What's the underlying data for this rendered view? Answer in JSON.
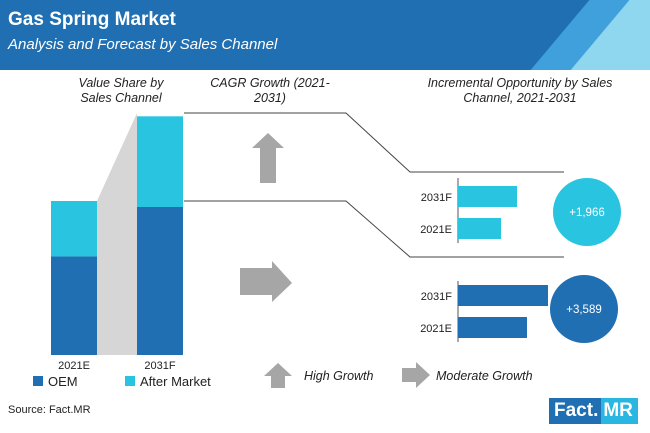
{
  "header": {
    "title": "Gas Spring Market",
    "subtitle": "Analysis and Forecast by Sales Channel"
  },
  "sections": {
    "value_share": "Value Share by Sales Channel",
    "cagr": "CAGR Growth (2021-2031)",
    "incremental": "Incremental Opportunity by Sales Channel, 2021-2031"
  },
  "colors": {
    "oem": "#1f6fb2",
    "aftermarket": "#29c4e0",
    "arrow": "#a6a6a6",
    "connector": "#d6d6d6"
  },
  "legend": {
    "oem": "OEM",
    "aftermarket": "After Market"
  },
  "growth_legend": {
    "high": "High Growth",
    "moderate": "Moderate Growth"
  },
  "footer": {
    "source": "Source: Fact.MR",
    "logo_fact": "Fact.",
    "logo_mr": "MR"
  },
  "chart_data": [
    {
      "type": "bar",
      "stacked": true,
      "title": "Value Share by Sales Channel",
      "categories": [
        "2021E",
        "2031F"
      ],
      "series": [
        {
          "name": "OEM",
          "values": [
            0.64,
            0.62
          ]
        },
        {
          "name": "After Market",
          "values": [
            0.36,
            0.38
          ]
        }
      ],
      "total_scale": [
        1.0,
        1.55
      ]
    },
    {
      "type": "bar",
      "orientation": "horizontal",
      "title": "Incremental Opportunity by Sales Channel, 2021-2031",
      "channel": "After Market",
      "growth": "High Growth",
      "categories": [
        "2031F",
        "2021E"
      ],
      "values": [
        59,
        43
      ],
      "incremental_label": "+1,966"
    },
    {
      "type": "bar",
      "orientation": "horizontal",
      "title": "Incremental Opportunity by Sales Channel, 2021-2031",
      "channel": "OEM",
      "growth": "Moderate Growth",
      "categories": [
        "2031F",
        "2021E"
      ],
      "values": [
        90,
        69
      ],
      "incremental_label": "+3,589"
    }
  ]
}
